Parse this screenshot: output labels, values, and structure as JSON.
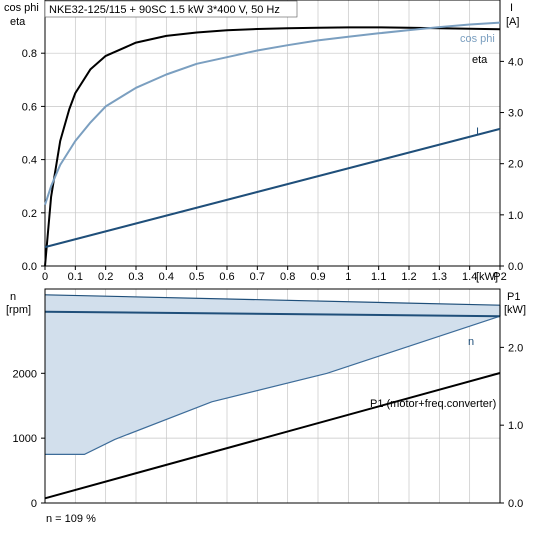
{
  "chart_data": [
    {
      "type": "line",
      "title": "NKE32-125/115 + 90SC   1.5 kW   3*400 V, 50 Hz",
      "x_label": "P2 [kW]",
      "x_unit": "[kW]",
      "x_ticks": [
        "0",
        "0.1",
        "0.2",
        "0.3",
        "0.4",
        "0.5",
        "0.6",
        "0.7",
        "0.8",
        "0.9",
        "1",
        "1.1",
        "1.2",
        "1.3",
        "1.4",
        "P2"
      ],
      "xlim": [
        0,
        1.5
      ],
      "y_left_label": "cos phi",
      "y_left_label2": "eta",
      "y_left_ticks": [
        "0.0",
        "0.2",
        "0.4",
        "0.6",
        "0.8"
      ],
      "y_left_lim": [
        0,
        1.0
      ],
      "y_right_label": "I",
      "y_right_unit": "[A]",
      "y_right_ticks": [
        "0.0",
        "1.0",
        "2.0",
        "3.0",
        "4.0"
      ],
      "y_right_lim": [
        0,
        5.2
      ],
      "grid": true,
      "series": [
        {
          "name": "eta",
          "axis": "left",
          "color": "#000000",
          "x": [
            0,
            0.02,
            0.05,
            0.08,
            0.1,
            0.15,
            0.2,
            0.3,
            0.4,
            0.5,
            0.6,
            0.7,
            0.8,
            0.9,
            1.0,
            1.1,
            1.2,
            1.3,
            1.4,
            1.5
          ],
          "y": [
            0,
            0.26,
            0.47,
            0.59,
            0.65,
            0.74,
            0.79,
            0.84,
            0.865,
            0.878,
            0.886,
            0.891,
            0.894,
            0.896,
            0.897,
            0.897,
            0.896,
            0.894,
            0.892,
            0.89
          ]
        },
        {
          "name": "cos phi",
          "axis": "left",
          "color": "#7b9fc0",
          "x": [
            0,
            0.02,
            0.05,
            0.1,
            0.15,
            0.2,
            0.3,
            0.4,
            0.5,
            0.6,
            0.7,
            0.8,
            0.9,
            1.0,
            1.1,
            1.2,
            1.3,
            1.4,
            1.5
          ],
          "y": [
            0.23,
            0.3,
            0.38,
            0.47,
            0.54,
            0.6,
            0.67,
            0.72,
            0.76,
            0.785,
            0.81,
            0.83,
            0.848,
            0.862,
            0.875,
            0.887,
            0.898,
            0.908,
            0.915
          ]
        },
        {
          "name": "I",
          "axis": "right",
          "color": "#1f4f7a",
          "x": [
            0,
            1.5
          ],
          "y": [
            0.37,
            2.68
          ]
        }
      ]
    },
    {
      "type": "area",
      "x_ticks": [
        "0",
        "0.1",
        "0.2",
        "0.3",
        "0.4",
        "0.5",
        "0.6",
        "0.7",
        "0.8",
        "0.9",
        "1",
        "1.1",
        "1.2",
        "1.3",
        "1.4",
        "P2"
      ],
      "xlim": [
        0,
        1.5
      ],
      "y_left_label": "n",
      "y_left_unit": "[rpm]",
      "y_left_ticks": [
        "0",
        "1000",
        "2000"
      ],
      "y_left_lim": [
        0,
        3300
      ],
      "y_right_label": "P1",
      "y_right_unit": "[kW]",
      "y_right_ticks": [
        "0.0",
        "1.0",
        "2.0"
      ],
      "y_right_lim": [
        0,
        2.75
      ],
      "grid": true,
      "series": [
        {
          "name": "n",
          "axis": "left",
          "color": "#1f4f7a",
          "x": [
            0,
            1.5
          ],
          "y": [
            2950,
            2880
          ]
        },
        {
          "name": "n range upper",
          "axis": "left",
          "color": "#1f4f7a",
          "x": [
            0,
            1.5
          ],
          "y": [
            3210,
            3050
          ]
        },
        {
          "name": "n range lower",
          "axis": "left",
          "color": "#3d6c99",
          "x": [
            0,
            0.13,
            0.23,
            0.55,
            0.93,
            1.5
          ],
          "y": [
            750,
            750,
            980,
            1560,
            2000,
            2880
          ]
        },
        {
          "name": "P1 (motor+freq.converter)",
          "axis": "right",
          "color": "#000000",
          "x": [
            0,
            1.5
          ],
          "y": [
            0.06,
            1.67
          ]
        }
      ],
      "annotations": [
        "n = 109 %"
      ]
    }
  ]
}
